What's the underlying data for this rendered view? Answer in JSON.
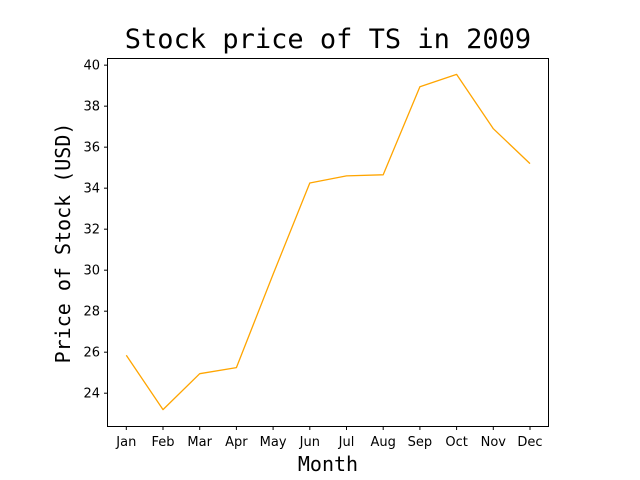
{
  "chart_data": {
    "type": "line",
    "title": "Stock price of TS in 2009",
    "xlabel": "Month",
    "ylabel": "Price of Stock (USD)",
    "categories": [
      "Jan",
      "Feb",
      "Mar",
      "Apr",
      "May",
      "Jun",
      "Jul",
      "Aug",
      "Sep",
      "Oct",
      "Nov",
      "Dec"
    ],
    "series": [
      {
        "values": [
          25.85,
          23.2,
          24.95,
          25.25,
          29.8,
          34.25,
          34.6,
          34.65,
          38.95,
          39.55,
          36.9,
          35.2
        ],
        "color": "#ffa500"
      }
    ],
    "yticks": [
      24,
      26,
      28,
      30,
      32,
      34,
      36,
      38,
      40
    ],
    "ylim": [
      22.4,
      40.3
    ],
    "grid": false,
    "legend": "none"
  }
}
